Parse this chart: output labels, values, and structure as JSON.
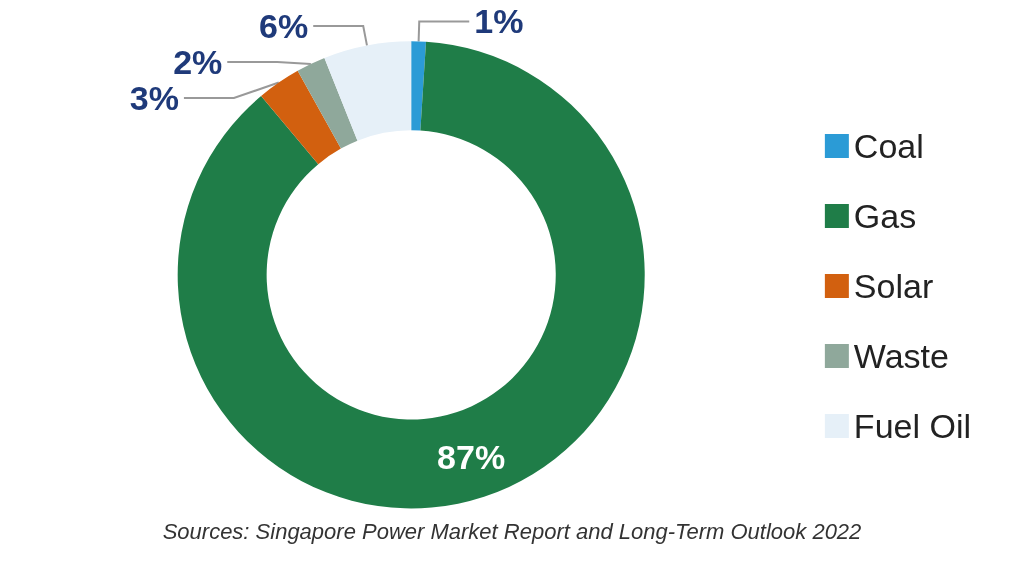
{
  "chart_data": {
    "type": "donut",
    "categories": [
      "Coal",
      "Gas",
      "Solar",
      "Waste",
      "Fuel Oil"
    ],
    "values": [
      1,
      87,
      3,
      2,
      6
    ],
    "colors": [
      "#2b9bd6",
      "#1f7d48",
      "#d2600f",
      "#8fa89b",
      "#e6f0f8"
    ],
    "legend": "right",
    "value_labels": [
      "1%",
      "87%",
      "3%",
      "2%",
      "6%"
    ],
    "annotations": [
      "Sources: Singapore Power Market Report and Long-Term Outlook 2022"
    ]
  }
}
